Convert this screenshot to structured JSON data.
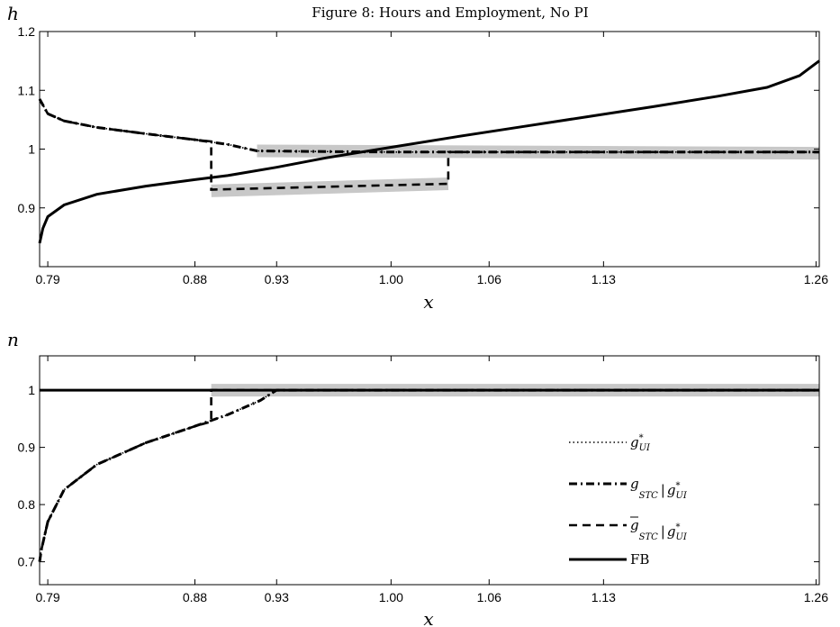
{
  "figure_title": "Figure 8: Hours and Employment, No PI",
  "chart_data": [
    {
      "type": "line",
      "panel": "top",
      "ylabel": "h",
      "xlabel": "x",
      "xlim": [
        0.785,
        1.262
      ],
      "ylim": [
        0.8,
        1.2
      ],
      "xticks": [
        0.79,
        0.88,
        0.93,
        1.0,
        1.06,
        1.13,
        1.26
      ],
      "xtick_labels": [
        "0.79",
        "0.88",
        "0.93",
        "1.00",
        "1.06",
        "1.13",
        "1.26"
      ],
      "yticks": [
        0.9,
        1.0,
        1.1,
        1.2
      ],
      "ytick_labels": [
        "0.9",
        "1",
        "1.1",
        "1.2"
      ],
      "shaded_bands": [
        {
          "x": [
            0.918,
            1.262
          ],
          "y": [
            0.997,
            0.993
          ]
        },
        {
          "x": [
            0.89,
            1.035
          ],
          "y": [
            0.929,
            0.941
          ]
        }
      ],
      "series": [
        {
          "name": "g_UI",
          "style": "dotted",
          "x": [
            0.785,
            0.79,
            0.8,
            0.82,
            0.85,
            0.88,
            0.9,
            0.918,
            0.95,
            1.0,
            1.1,
            1.262
          ],
          "y": [
            1.085,
            1.06,
            1.048,
            1.037,
            1.026,
            1.016,
            1.008,
            0.997,
            0.996,
            0.995,
            0.995,
            0.995
          ]
        },
        {
          "name": "g_STC|g_UI",
          "style": "dashdot",
          "x": [
            0.785,
            0.79,
            0.8,
            0.82,
            0.85,
            0.88,
            0.9,
            0.918,
            0.95,
            1.0,
            1.1,
            1.262
          ],
          "y": [
            1.085,
            1.06,
            1.048,
            1.037,
            1.026,
            1.016,
            1.008,
            0.997,
            0.996,
            0.995,
            0.995,
            0.995
          ]
        },
        {
          "name": "gbar_STC|g_UI",
          "style": "dashed",
          "x": [
            0.785,
            0.79,
            0.8,
            0.82,
            0.85,
            0.88,
            0.89,
            0.89,
            1.035,
            1.035,
            1.262
          ],
          "y": [
            1.085,
            1.06,
            1.048,
            1.037,
            1.026,
            1.016,
            1.013,
            0.931,
            0.941,
            0.995,
            0.995
          ]
        },
        {
          "name": "FB",
          "style": "solid",
          "x": [
            0.785,
            0.787,
            0.79,
            0.8,
            0.82,
            0.85,
            0.88,
            0.9,
            0.93,
            0.96,
            1.0,
            1.04,
            1.08,
            1.12,
            1.16,
            1.2,
            1.23,
            1.25,
            1.262
          ],
          "y": [
            0.84,
            0.865,
            0.885,
            0.905,
            0.923,
            0.937,
            0.948,
            0.955,
            0.969,
            0.985,
            1.003,
            1.021,
            1.038,
            1.055,
            1.072,
            1.09,
            1.105,
            1.125,
            1.15
          ]
        }
      ]
    },
    {
      "type": "line",
      "panel": "bottom",
      "ylabel": "n",
      "xlabel": "x",
      "xlim": [
        0.785,
        1.262
      ],
      "ylim": [
        0.66,
        1.06
      ],
      "xticks": [
        0.79,
        0.88,
        0.93,
        1.0,
        1.06,
        1.13,
        1.26
      ],
      "xtick_labels": [
        "0.79",
        "0.88",
        "0.93",
        "1.00",
        "1.06",
        "1.13",
        "1.26"
      ],
      "yticks": [
        0.7,
        0.8,
        0.9,
        1.0
      ],
      "ytick_labels": [
        "0.7",
        "0.8",
        "0.9",
        "1"
      ],
      "shaded_bands": [
        {
          "x": [
            0.89,
            1.262
          ],
          "y": [
            1.0,
            1.0
          ]
        }
      ],
      "series": [
        {
          "name": "g_UI",
          "style": "dotted",
          "x": [
            0.785,
            0.786,
            0.79,
            0.8,
            0.82,
            0.85,
            0.88,
            0.9,
            0.92,
            0.93,
            1.0,
            1.262
          ],
          "y": [
            0.7,
            0.72,
            0.77,
            0.826,
            0.87,
            0.908,
            0.937,
            0.957,
            0.982,
            1.0,
            1.0,
            1.0
          ]
        },
        {
          "name": "g_STC|g_UI",
          "style": "dashdot",
          "x": [
            0.785,
            0.786,
            0.79,
            0.8,
            0.82,
            0.85,
            0.88,
            0.9,
            0.92,
            0.93,
            1.0,
            1.262
          ],
          "y": [
            0.7,
            0.72,
            0.77,
            0.826,
            0.87,
            0.908,
            0.937,
            0.957,
            0.982,
            1.0,
            1.0,
            1.0
          ]
        },
        {
          "name": "gbar_STC|g_UI",
          "style": "dashed",
          "x": [
            0.785,
            0.786,
            0.79,
            0.8,
            0.82,
            0.85,
            0.88,
            0.89,
            0.89,
            1.262
          ],
          "y": [
            0.7,
            0.72,
            0.77,
            0.826,
            0.87,
            0.908,
            0.937,
            0.945,
            1.0,
            1.0
          ]
        },
        {
          "name": "FB",
          "style": "solid",
          "x": [
            0.785,
            1.262
          ],
          "y": [
            1.0,
            1.0
          ]
        }
      ],
      "legend": {
        "placement": "lower-right",
        "entries": [
          {
            "style": "dotted",
            "symbol": "g",
            "sub": "UI",
            "cond_symbol": "",
            "cond_sub": "",
            "bar": false
          },
          {
            "style": "dashdot",
            "symbol": "g",
            "sub": "STC",
            "cond_symbol": "g",
            "cond_sub": "UI",
            "bar": false
          },
          {
            "style": "dashed",
            "symbol": "g",
            "sub": "STC",
            "cond_symbol": "g",
            "cond_sub": "UI",
            "bar": true
          },
          {
            "style": "solid",
            "symbol": "FB",
            "sub": "",
            "cond_symbol": "",
            "cond_sub": "",
            "bar": false
          }
        ]
      }
    }
  ],
  "colors": {
    "line": "#000000",
    "band": "#c8c8c8",
    "axis": "#000000"
  }
}
